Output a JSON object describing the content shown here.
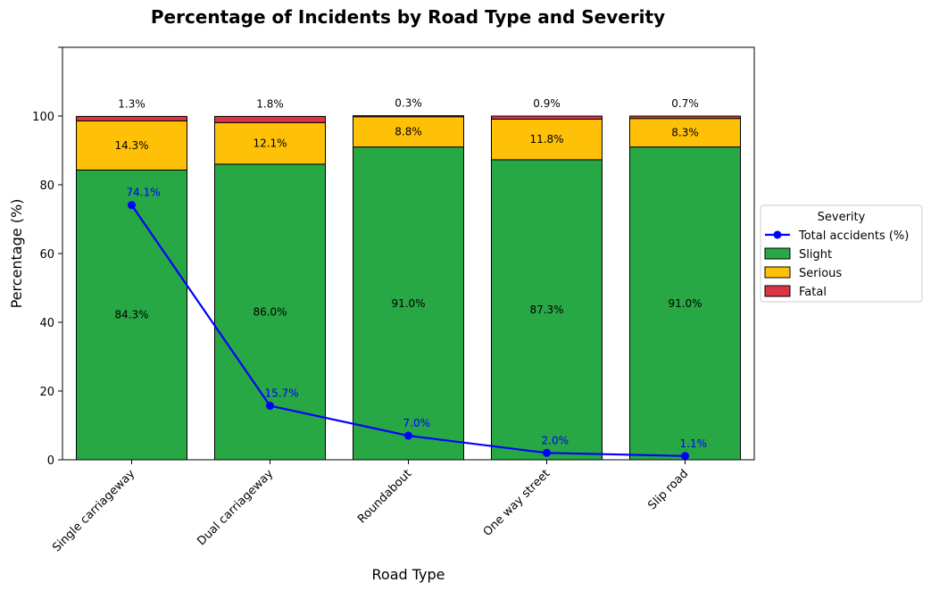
{
  "chart_data": {
    "type": "bar",
    "title": "Percentage of Incidents by Road Type and Severity",
    "xlabel": "Road Type",
    "ylabel": "Percentage (%)",
    "ylim": [
      0,
      120
    ],
    "yticks": [
      0,
      20,
      40,
      60,
      80,
      100
    ],
    "stacked": true,
    "grid": false,
    "legend_position": "right",
    "categories": [
      "Single carriageway",
      "Dual carriageway",
      "Roundabout",
      "One way street",
      "Slip road"
    ],
    "series": [
      {
        "name": "Slight",
        "color": "#28a745",
        "values": [
          84.3,
          86.0,
          91.0,
          87.3,
          91.0
        ],
        "labels": [
          "84.3%",
          "86.0%",
          "91.0%",
          "87.3%",
          "91.0%"
        ]
      },
      {
        "name": "Serious",
        "color": "#ffc107",
        "values": [
          14.3,
          12.1,
          8.8,
          11.8,
          8.3
        ],
        "labels": [
          "14.3%",
          "12.1%",
          "8.8%",
          "11.8%",
          "8.3%"
        ]
      },
      {
        "name": "Fatal",
        "color": "#dc3545",
        "values": [
          1.3,
          1.8,
          0.3,
          0.9,
          0.7
        ],
        "labels": [
          "1.3%",
          "1.8%",
          "0.3%",
          "0.9%",
          "0.7%"
        ]
      }
    ],
    "line_series": {
      "name": "Total accidents (%)",
      "type": "line",
      "color": "#0000ff",
      "values": [
        74.1,
        15.7,
        7.0,
        2.0,
        1.1
      ],
      "labels": [
        "74.1%",
        "15.7%",
        "7.0%",
        "2.0%",
        "1.1%"
      ]
    },
    "legend": {
      "title": "Severity",
      "items": [
        "Total accidents (%)",
        "Slight",
        "Serious",
        "Fatal"
      ]
    }
  }
}
